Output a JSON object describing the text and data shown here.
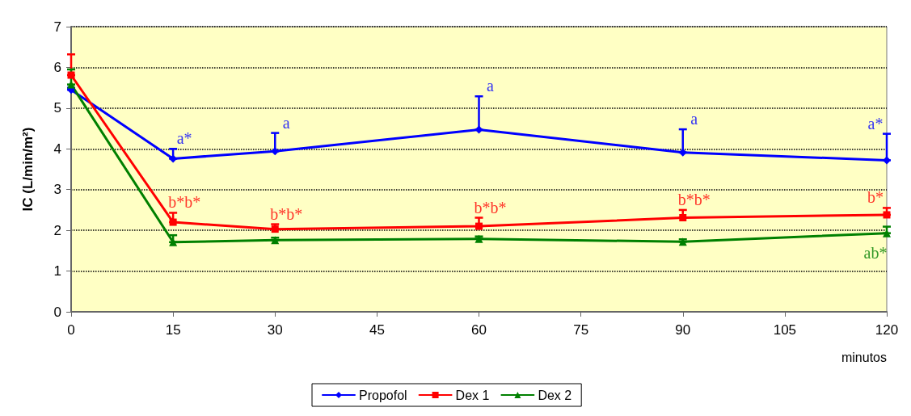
{
  "chart_data": {
    "type": "line",
    "ylabel": "IC (L/min/m²)",
    "xlabel": "minutos",
    "x": [
      0,
      15,
      30,
      60,
      90,
      120
    ],
    "xlim": [
      0,
      120
    ],
    "xticks": [
      0,
      15,
      30,
      45,
      60,
      75,
      90,
      105,
      120
    ],
    "ylim": [
      0,
      7
    ],
    "yticks": [
      0,
      1,
      2,
      3,
      4,
      5,
      6,
      7
    ],
    "grid": "y",
    "legend": "bottom",
    "line_style": "solid",
    "series": [
      {
        "name": "Propofol",
        "color": "#0000ff",
        "marker": "diamond",
        "values": [
          5.45,
          3.76,
          3.94,
          4.47,
          3.91,
          3.72
        ],
        "errors": [
          [
            5.45,
            5.5
          ],
          [
            3.76,
            4.0
          ],
          [
            3.94,
            4.39
          ],
          [
            4.47,
            5.29
          ],
          [
            3.91,
            4.48
          ],
          [
            3.72,
            4.37
          ]
        ]
      },
      {
        "name": "Dex 1",
        "color": "#ff0000",
        "marker": "square",
        "values": [
          5.81,
          2.2,
          2.03,
          2.1,
          2.31,
          2.38
        ],
        "errors": [
          [
            5.81,
            6.32
          ],
          [
            2.2,
            2.43
          ],
          [
            2.03,
            2.15
          ],
          [
            2.1,
            2.31
          ],
          [
            2.31,
            2.5
          ],
          [
            2.38,
            2.55
          ]
        ]
      },
      {
        "name": "Dex 2",
        "color": "#008000",
        "marker": "triangle",
        "values": [
          5.58,
          1.71,
          1.76,
          1.79,
          1.72,
          1.93
        ],
        "errors": [
          [
            5.58,
            5.95
          ],
          [
            1.71,
            1.88
          ],
          [
            1.76,
            1.82
          ],
          [
            1.79,
            1.85
          ],
          [
            1.72,
            1.78
          ],
          [
            1.93,
            2.09
          ]
        ]
      }
    ],
    "annotations": [
      {
        "text": "a*",
        "x": 15,
        "y": 3.76
      },
      {
        "text": "a",
        "x": 30,
        "y": 3.94
      },
      {
        "text": "a",
        "x": 60,
        "y": 4.47
      },
      {
        "text": "a",
        "x": 90,
        "y": 3.91
      },
      {
        "text": "a*",
        "x": 120,
        "y": 3.72
      },
      {
        "text": "b*b*",
        "x": 15,
        "y": 2.2
      },
      {
        "text": "b*b*",
        "x": 30,
        "y": 2.03
      },
      {
        "text": "b*b*",
        "x": 60,
        "y": 2.1
      },
      {
        "text": "b*b*",
        "x": 90,
        "y": 2.31
      },
      {
        "text": "b*",
        "x": 120,
        "y": 2.38
      },
      {
        "text": "ab*",
        "x": 120,
        "y": 1.93
      }
    ]
  }
}
